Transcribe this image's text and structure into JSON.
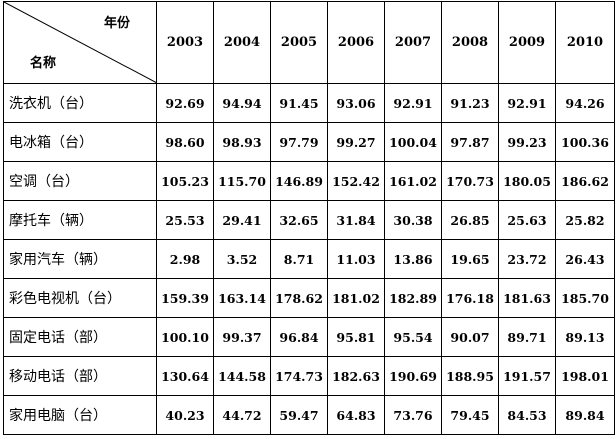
{
  "header": {
    "corner_top": "年份",
    "corner_bottom": "名称",
    "years": [
      "2003",
      "2004",
      "2005",
      "2006",
      "2007",
      "2008",
      "2009",
      "2010"
    ]
  },
  "rows": [
    {
      "name": "洗衣机（台）",
      "values": [
        "92.69",
        "94.94",
        "91.45",
        "93.06",
        "92.91",
        "91.23",
        "92.91",
        "94.26"
      ]
    },
    {
      "name": "电冰箱（台）",
      "values": [
        "98.60",
        "98.93",
        "97.79",
        "99.27",
        "100.04",
        "97.87",
        "99.23",
        "100.36"
      ]
    },
    {
      "name": "空调（台）",
      "values": [
        "105.23",
        "115.70",
        "146.89",
        "152.42",
        "161.02",
        "170.73",
        "180.05",
        "186.62"
      ]
    },
    {
      "name": "摩托车（辆）",
      "values": [
        "25.53",
        "29.41",
        "32.65",
        "31.84",
        "30.38",
        "26.85",
        "25.63",
        "25.82"
      ]
    },
    {
      "name": "家用汽车（辆）",
      "values": [
        "2.98",
        "3.52",
        "8.71",
        "11.03",
        "13.86",
        "19.65",
        "23.72",
        "26.43"
      ]
    },
    {
      "name": "彩色电视机（台）",
      "values": [
        "159.39",
        "163.14",
        "178.62",
        "181.02",
        "182.89",
        "176.18",
        "181.63",
        "185.70"
      ]
    },
    {
      "name": "固定电话（部）",
      "values": [
        "100.10",
        "99.37",
        "96.84",
        "95.81",
        "95.54",
        "90.07",
        "89.71",
        "89.13"
      ]
    },
    {
      "name": "移动电话（部）",
      "values": [
        "130.64",
        "144.58",
        "174.73",
        "182.63",
        "190.69",
        "188.95",
        "191.57",
        "198.01"
      ]
    },
    {
      "name": "家用电脑（台）",
      "values": [
        "40.23",
        "44.72",
        "59.47",
        "64.83",
        "73.76",
        "79.45",
        "84.53",
        "89.84"
      ]
    }
  ]
}
